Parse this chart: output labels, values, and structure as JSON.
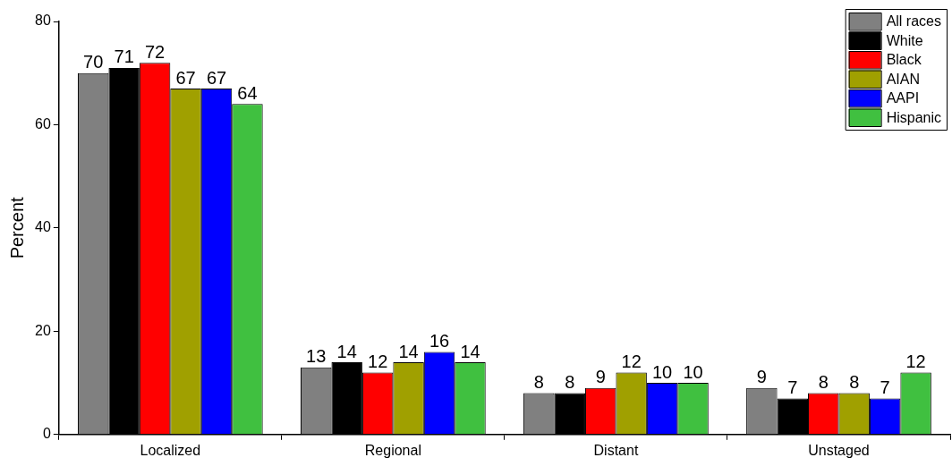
{
  "chart_data": {
    "type": "bar",
    "ylabel": "Percent",
    "categories": [
      "Localized",
      "Regional",
      "Distant",
      "Unstaged"
    ],
    "series": [
      {
        "name": "All races",
        "color": "#808080",
        "values": [
          70,
          13,
          8,
          9
        ]
      },
      {
        "name": "White",
        "color": "#000000",
        "values": [
          71,
          14,
          8,
          7
        ]
      },
      {
        "name": "Black",
        "color": "#ff0000",
        "values": [
          72,
          12,
          9,
          8
        ]
      },
      {
        "name": "AIAN",
        "color": "#a0a000",
        "values": [
          67,
          14,
          12,
          8
        ]
      },
      {
        "name": "AAPI",
        "color": "#0000ff",
        "values": [
          67,
          16,
          10,
          7
        ]
      },
      {
        "name": "Hispanic",
        "color": "#40c040",
        "values": [
          64,
          14,
          10,
          12
        ]
      }
    ],
    "ylim": [
      0,
      80
    ],
    "yticks": [
      0,
      20,
      40,
      60,
      80
    ],
    "grid": false,
    "legend": "top right",
    "data_labels": true
  }
}
